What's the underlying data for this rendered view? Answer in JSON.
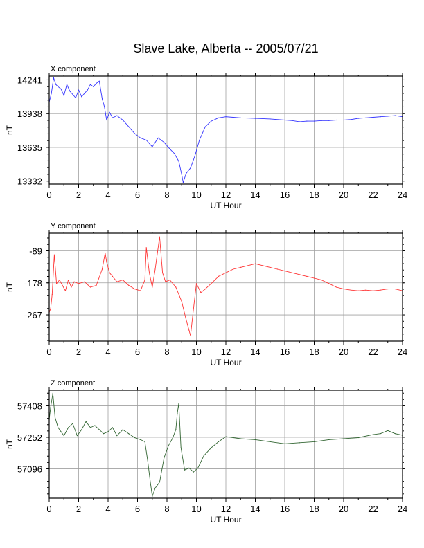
{
  "title": "Slave Lake, Alberta -- 2005/07/21",
  "chart_data": [
    {
      "type": "line",
      "panel_label": "X component",
      "color": "#3333ff",
      "xlabel": "UT Hour",
      "ylabel": "nT",
      "xlim": [
        0,
        24
      ],
      "ylim": [
        13305,
        14275
      ],
      "xticks": [
        "0",
        "2",
        "4",
        "6",
        "8",
        "10",
        "12",
        "14",
        "16",
        "18",
        "20",
        "22",
        "24"
      ],
      "yticks": [
        "14241",
        "13938",
        "13635",
        "13332"
      ],
      "grid": true,
      "x": [
        0.0,
        0.15,
        0.3,
        0.45,
        0.6,
        0.8,
        1.0,
        1.2,
        1.4,
        1.6,
        1.8,
        2.0,
        2.2,
        2.4,
        2.6,
        2.8,
        3.0,
        3.2,
        3.4,
        3.6,
        3.75,
        3.9,
        4.1,
        4.3,
        4.6,
        5.0,
        5.4,
        5.8,
        6.2,
        6.6,
        7.0,
        7.4,
        7.8,
        8.2,
        8.5,
        8.8,
        9.0,
        9.1,
        9.3,
        9.6,
        9.9,
        10.2,
        10.6,
        11.0,
        11.5,
        12.0,
        12.5,
        13.0,
        14.0,
        15.0,
        16.0,
        16.5,
        17.0,
        17.5,
        18.0,
        18.5,
        19.0,
        19.5,
        20.0,
        20.5,
        21.0,
        21.5,
        22.0,
        22.5,
        23.0,
        23.5,
        24.0
      ],
      "y": [
        14040,
        14120,
        14260,
        14200,
        14180,
        14160,
        14100,
        14200,
        14140,
        14110,
        14080,
        14150,
        14090,
        14120,
        14150,
        14200,
        14180,
        14210,
        14230,
        14070,
        14000,
        13880,
        13950,
        13900,
        13920,
        13880,
        13820,
        13760,
        13720,
        13700,
        13640,
        13720,
        13680,
        13620,
        13580,
        13510,
        13390,
        13320,
        13400,
        13450,
        13560,
        13700,
        13820,
        13870,
        13900,
        13910,
        13905,
        13900,
        13895,
        13890,
        13880,
        13875,
        13865,
        13870,
        13870,
        13875,
        13875,
        13880,
        13880,
        13885,
        13895,
        13900,
        13905,
        13910,
        13915,
        13920,
        13910
      ]
    },
    {
      "type": "line",
      "panel_label": "Y component",
      "color": "#ff3333",
      "xlabel": "UT Hour",
      "ylabel": "nT",
      "xlim": [
        0,
        24
      ],
      "ylim": [
        -340,
        -40
      ],
      "xticks": [
        "0",
        "2",
        "4",
        "6",
        "8",
        "10",
        "12",
        "14",
        "16",
        "18",
        "20",
        "22",
        "24"
      ],
      "yticks": [
        "-89",
        "-178",
        "-267"
      ],
      "grid": true,
      "x": [
        0.0,
        0.1,
        0.2,
        0.35,
        0.5,
        0.7,
        0.9,
        1.1,
        1.3,
        1.5,
        1.7,
        2.0,
        2.4,
        2.8,
        3.2,
        3.6,
        3.8,
        3.9,
        4.1,
        4.3,
        4.6,
        5.0,
        5.4,
        5.8,
        6.2,
        6.5,
        6.6,
        6.8,
        7.0,
        7.2,
        7.5,
        7.7,
        7.9,
        8.2,
        8.6,
        9.0,
        9.3,
        9.5,
        9.6,
        9.8,
        10.0,
        10.3,
        10.6,
        11.0,
        11.5,
        12.0,
        12.5,
        13.0,
        13.5,
        14.0,
        14.5,
        15.0,
        15.5,
        16.0,
        16.5,
        17.0,
        17.5,
        18.0,
        18.5,
        19.0,
        19.5,
        20.0,
        20.5,
        21.0,
        21.5,
        22.0,
        22.5,
        23.0,
        23.5,
        24.0
      ],
      "y": [
        -260,
        -250,
        -210,
        -100,
        -180,
        -170,
        -185,
        -200,
        -170,
        -190,
        -175,
        -180,
        -175,
        -190,
        -185,
        -140,
        -95,
        -120,
        -150,
        -160,
        -175,
        -170,
        -185,
        -195,
        -200,
        -170,
        -80,
        -150,
        -190,
        -140,
        -50,
        -150,
        -175,
        -170,
        -190,
        -230,
        -280,
        -310,
        -325,
        -250,
        -180,
        -205,
        -195,
        -180,
        -160,
        -150,
        -140,
        -135,
        -130,
        -125,
        -130,
        -135,
        -140,
        -145,
        -150,
        -155,
        -160,
        -165,
        -170,
        -180,
        -190,
        -195,
        -198,
        -200,
        -198,
        -200,
        -198,
        -195,
        -195,
        -200
      ]
    },
    {
      "type": "line",
      "panel_label": "Z component",
      "color": "#336633",
      "xlabel": "UT Hour",
      "ylabel": "nT",
      "xlim": [
        0,
        24
      ],
      "ylim": [
        56950,
        57485
      ],
      "xticks": [
        "0",
        "2",
        "4",
        "6",
        "8",
        "10",
        "12",
        "14",
        "16",
        "18",
        "20",
        "22",
        "24"
      ],
      "yticks": [
        "57408",
        "57252",
        "57096"
      ],
      "grid": true,
      "x": [
        0.0,
        0.1,
        0.25,
        0.4,
        0.6,
        0.8,
        1.0,
        1.3,
        1.6,
        1.9,
        2.2,
        2.5,
        2.8,
        3.1,
        3.4,
        3.7,
        4.0,
        4.3,
        4.6,
        5.0,
        5.4,
        5.8,
        6.2,
        6.5,
        6.7,
        6.85,
        7.0,
        7.2,
        7.5,
        7.8,
        8.1,
        8.4,
        8.6,
        8.7,
        8.8,
        8.95,
        9.2,
        9.5,
        9.8,
        10.1,
        10.5,
        11.0,
        11.5,
        12.0,
        12.5,
        13.0,
        14.0,
        15.0,
        16.0,
        17.0,
        18.0,
        19.0,
        20.0,
        21.0,
        22.0,
        22.5,
        23.0,
        23.5,
        24.0
      ],
      "y": [
        57340,
        57400,
        57470,
        57350,
        57300,
        57280,
        57260,
        57300,
        57320,
        57260,
        57290,
        57330,
        57300,
        57310,
        57290,
        57270,
        57280,
        57300,
        57260,
        57290,
        57270,
        57250,
        57240,
        57230,
        57130,
        57040,
        56960,
        57000,
        57030,
        57150,
        57210,
        57250,
        57290,
        57370,
        57420,
        57200,
        57090,
        57100,
        57080,
        57100,
        57160,
        57200,
        57230,
        57255,
        57250,
        57245,
        57240,
        57230,
        57220,
        57225,
        57230,
        57240,
        57245,
        57250,
        57265,
        57270,
        57285,
        57270,
        57262
      ]
    }
  ]
}
